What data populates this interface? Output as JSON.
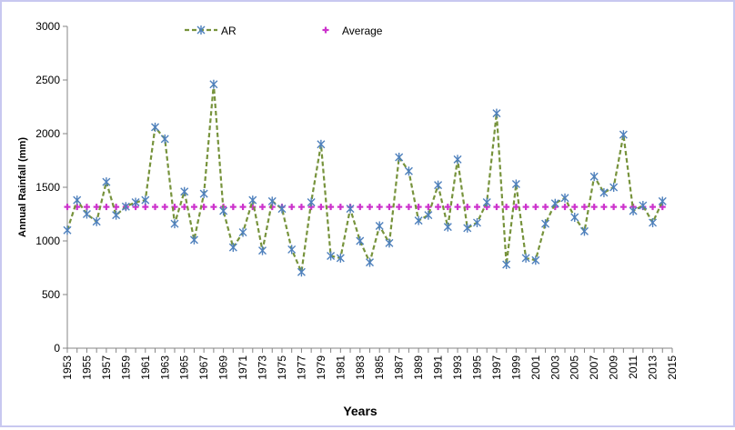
{
  "chart_data": {
    "type": "line",
    "title": "",
    "xlabel": "Years",
    "ylabel": "Annual Rainfall  (mm)",
    "ylim": [
      0,
      3000
    ],
    "xlim": [
      1953,
      2015
    ],
    "yticks": [
      "0",
      "500",
      "1000",
      "1500",
      "2000",
      "2500",
      "3000"
    ],
    "xtick_labels": [
      "1953",
      "1955",
      "1957",
      "1959",
      "1961",
      "1963",
      "1965",
      "1967",
      "1969",
      "1971",
      "1973",
      "1975",
      "1977",
      "1979",
      "1981",
      "1983",
      "1985",
      "1987",
      "1989",
      "1991",
      "1993",
      "1995",
      "1997",
      "1999",
      "2001",
      "2003",
      "2005",
      "2007",
      "2009",
      "2011",
      "2013",
      "2015"
    ],
    "legend_position": "top",
    "series": [
      {
        "name": "AR",
        "style": "dashed line with asterisk markers",
        "color": "#77933C",
        "marker_color": "#4F81BD",
        "x": [
          1953,
          1954,
          1955,
          1956,
          1957,
          1958,
          1959,
          1960,
          1961,
          1962,
          1963,
          1964,
          1965,
          1966,
          1967,
          1968,
          1969,
          1970,
          1971,
          1972,
          1973,
          1974,
          1975,
          1976,
          1977,
          1978,
          1979,
          1980,
          1981,
          1982,
          1983,
          1984,
          1985,
          1986,
          1987,
          1988,
          1989,
          1990,
          1991,
          1992,
          1993,
          1994,
          1995,
          1996,
          1997,
          1998,
          1999,
          2000,
          2001,
          2002,
          2003,
          2004,
          2005,
          2006,
          2007,
          2008,
          2009,
          2010,
          2011,
          2012,
          2013,
          2014
        ],
        "values": [
          1100,
          1380,
          1250,
          1180,
          1550,
          1240,
          1320,
          1360,
          1380,
          2060,
          1950,
          1160,
          1460,
          1010,
          1440,
          2460,
          1280,
          940,
          1080,
          1380,
          910,
          1370,
          1300,
          920,
          710,
          1360,
          1900,
          860,
          840,
          1300,
          1000,
          800,
          1140,
          980,
          1780,
          1650,
          1190,
          1240,
          1520,
          1130,
          1760,
          1120,
          1170,
          1360,
          2190,
          780,
          1530,
          840,
          820,
          1160,
          1350,
          1400,
          1220,
          1090,
          1600,
          1450,
          1500,
          1990,
          1280,
          1330,
          1170,
          1370
        ]
      },
      {
        "name": "Average",
        "style": "markers only",
        "color": "#CC33CC",
        "x": [
          1953,
          1954,
          1955,
          1956,
          1957,
          1958,
          1959,
          1960,
          1961,
          1962,
          1963,
          1964,
          1965,
          1966,
          1967,
          1968,
          1969,
          1970,
          1971,
          1972,
          1973,
          1974,
          1975,
          1976,
          1977,
          1978,
          1979,
          1980,
          1981,
          1982,
          1983,
          1984,
          1985,
          1986,
          1987,
          1988,
          1989,
          1990,
          1991,
          1992,
          1993,
          1994,
          1995,
          1996,
          1997,
          1998,
          1999,
          2000,
          2001,
          2002,
          2003,
          2004,
          2005,
          2006,
          2007,
          2008,
          2009,
          2010,
          2011,
          2012,
          2013,
          2014
        ],
        "values": [
          1317,
          1317,
          1317,
          1317,
          1317,
          1317,
          1317,
          1317,
          1317,
          1317,
          1317,
          1317,
          1317,
          1317,
          1317,
          1317,
          1317,
          1317,
          1317,
          1317,
          1317,
          1317,
          1317,
          1317,
          1317,
          1317,
          1317,
          1317,
          1317,
          1317,
          1317,
          1317,
          1317,
          1317,
          1317,
          1317,
          1317,
          1317,
          1317,
          1317,
          1317,
          1317,
          1317,
          1317,
          1317,
          1317,
          1317,
          1317,
          1317,
          1317,
          1317,
          1317,
          1317,
          1317,
          1317,
          1317,
          1317,
          1317,
          1317,
          1317,
          1317,
          1317
        ]
      }
    ]
  }
}
